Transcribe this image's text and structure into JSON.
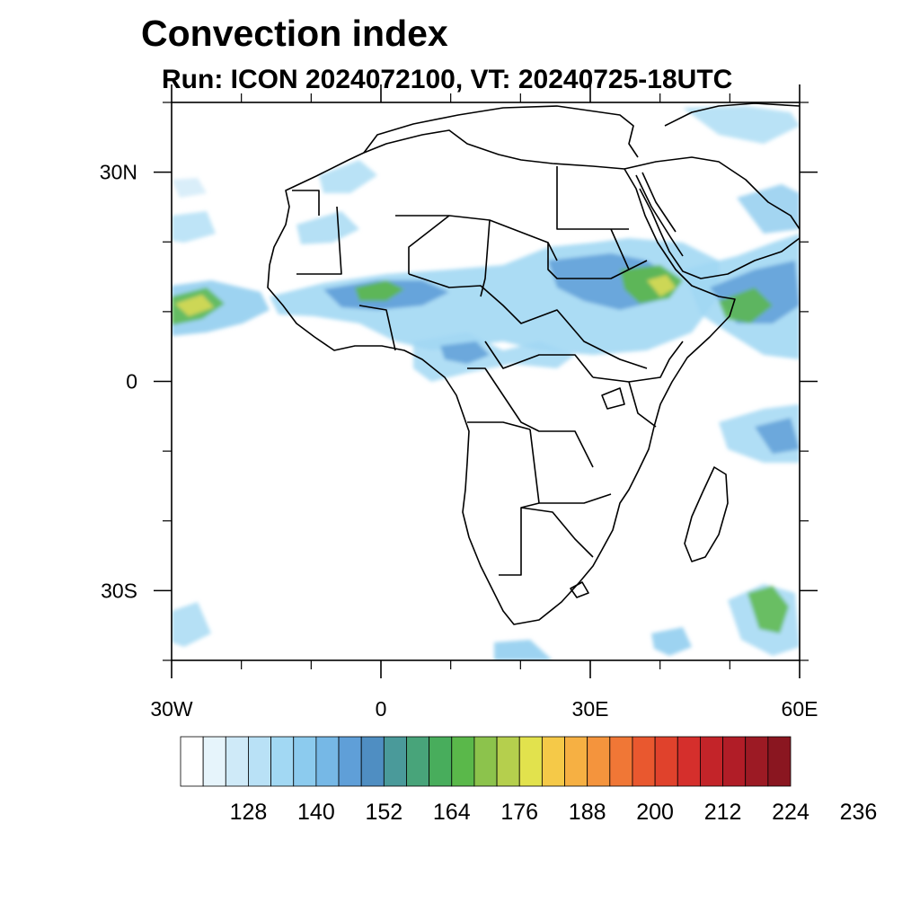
{
  "title": "Convection index",
  "subtitle": "Run: ICON 2024072100,  VT: 20240725-18UTC",
  "map": {
    "lon_range": [
      -30,
      60
    ],
    "lat_range": [
      -40,
      40
    ],
    "lat_ticks": [
      {
        "value": 30,
        "label": "30N"
      },
      {
        "value": 0,
        "label": "0"
      },
      {
        "value": -30,
        "label": "30S"
      }
    ],
    "lon_ticks": [
      {
        "value": -30,
        "label": "30W"
      },
      {
        "value": 0,
        "label": "0"
      },
      {
        "value": 30,
        "label": "30E"
      },
      {
        "value": 60,
        "label": "60E"
      }
    ],
    "minor_lat_ticks": [
      40,
      20,
      10,
      -10,
      -20,
      -40
    ],
    "minor_lon_ticks": [
      -20,
      -10,
      10,
      20,
      40,
      50
    ],
    "coastline_color": "#000000",
    "field_description_colors": {
      "light": "#a8d8f0",
      "mid": "#5aa0d8",
      "teal": "#4aa39a",
      "green": "#5cb84a",
      "yellow": "#e8e04a"
    }
  },
  "colorbar": {
    "colors": [
      "#ffffff",
      "#e6f4fb",
      "#cfeaf8",
      "#b9e1f6",
      "#a2d8f3",
      "#8ccbee",
      "#76b8e6",
      "#5f9fd8",
      "#4f8ec2",
      "#4a9a9a",
      "#48a47a",
      "#48ad5c",
      "#5ab84a",
      "#8cc34c",
      "#b5cf4d",
      "#e2e24d",
      "#f5c948",
      "#f6b043",
      "#f4943d",
      "#f07736",
      "#e9582f",
      "#e0422c",
      "#d52f2c",
      "#c32429",
      "#b11d27",
      "#9c1a24",
      "#8a1620"
    ],
    "labels": [
      "128",
      "140",
      "152",
      "164",
      "176",
      "188",
      "200",
      "212",
      "224",
      "236"
    ]
  }
}
